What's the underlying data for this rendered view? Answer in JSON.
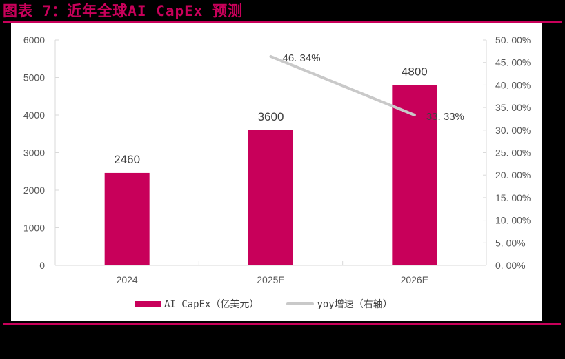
{
  "header": {
    "title": "图表 7：近年全球AI CapEx 预测"
  },
  "colors": {
    "accent": "#c8005a",
    "line": "#c9c9c9",
    "axis": "#d9d9d9",
    "text": "#595959",
    "background": "#000000",
    "panel": "#ffffff"
  },
  "legend": {
    "bar_label": "AI CapEx（亿美元）",
    "line_label": "yoy增速（右轴）"
  },
  "chart_data": {
    "type": "bar",
    "title": "近年全球AI CapEx 预测",
    "categories": [
      "2024",
      "2025E",
      "2026E"
    ],
    "series": [
      {
        "name": "AI CapEx（亿美元）",
        "type": "bar",
        "axis": "left",
        "values": [
          2460,
          3600,
          4800
        ],
        "labels": [
          "2460",
          "3600",
          "4800"
        ]
      },
      {
        "name": "yoy增速（右轴）",
        "type": "line",
        "axis": "right",
        "values": [
          null,
          46.34,
          33.33
        ],
        "labels": [
          "",
          "46.34%",
          "33.33%"
        ]
      }
    ],
    "left_axis": {
      "ylim": [
        0,
        6000
      ],
      "ticks": [
        "0",
        "1000",
        "2000",
        "3000",
        "4000",
        "5000",
        "6000"
      ]
    },
    "right_axis": {
      "ylim": [
        0,
        50
      ],
      "ticks": [
        "0.00%",
        "5.00%",
        "10.00%",
        "15.00%",
        "20.00%",
        "25.00%",
        "30.00%",
        "35.00%",
        "40.00%",
        "45.00%",
        "50.00%"
      ]
    },
    "xlabel": "",
    "ylabel": "",
    "grid": false,
    "legend_position": "bottom"
  }
}
